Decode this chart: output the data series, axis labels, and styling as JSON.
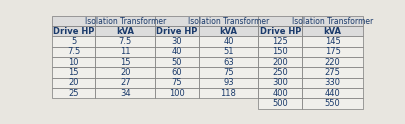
{
  "col1_data": [
    [
      "5",
      "7.5"
    ],
    [
      "7.5",
      "11"
    ],
    [
      "10",
      "15"
    ],
    [
      "15",
      "20"
    ],
    [
      "20",
      "27"
    ],
    [
      "25",
      "34"
    ]
  ],
  "col2_data": [
    [
      "30",
      "40"
    ],
    [
      "40",
      "51"
    ],
    [
      "50",
      "63"
    ],
    [
      "60",
      "75"
    ],
    [
      "75",
      "93"
    ],
    [
      "100",
      "118"
    ]
  ],
  "col3_data": [
    [
      "125",
      "145"
    ],
    [
      "150",
      "175"
    ],
    [
      "200",
      "220"
    ],
    [
      "250",
      "275"
    ],
    [
      "300",
      "330"
    ],
    [
      "400",
      "440"
    ],
    [
      "500",
      "550"
    ]
  ],
  "group_header": "Isolation Transformer",
  "sub_headers": [
    "Drive HP",
    "kVA"
  ],
  "header_bg": "#dcdcdc",
  "row_bg": "#f0efeb",
  "border_color": "#7a7a7a",
  "text_color": "#1a3a6b",
  "font_size": 6.0,
  "fig_bg": "#e8e6e0"
}
